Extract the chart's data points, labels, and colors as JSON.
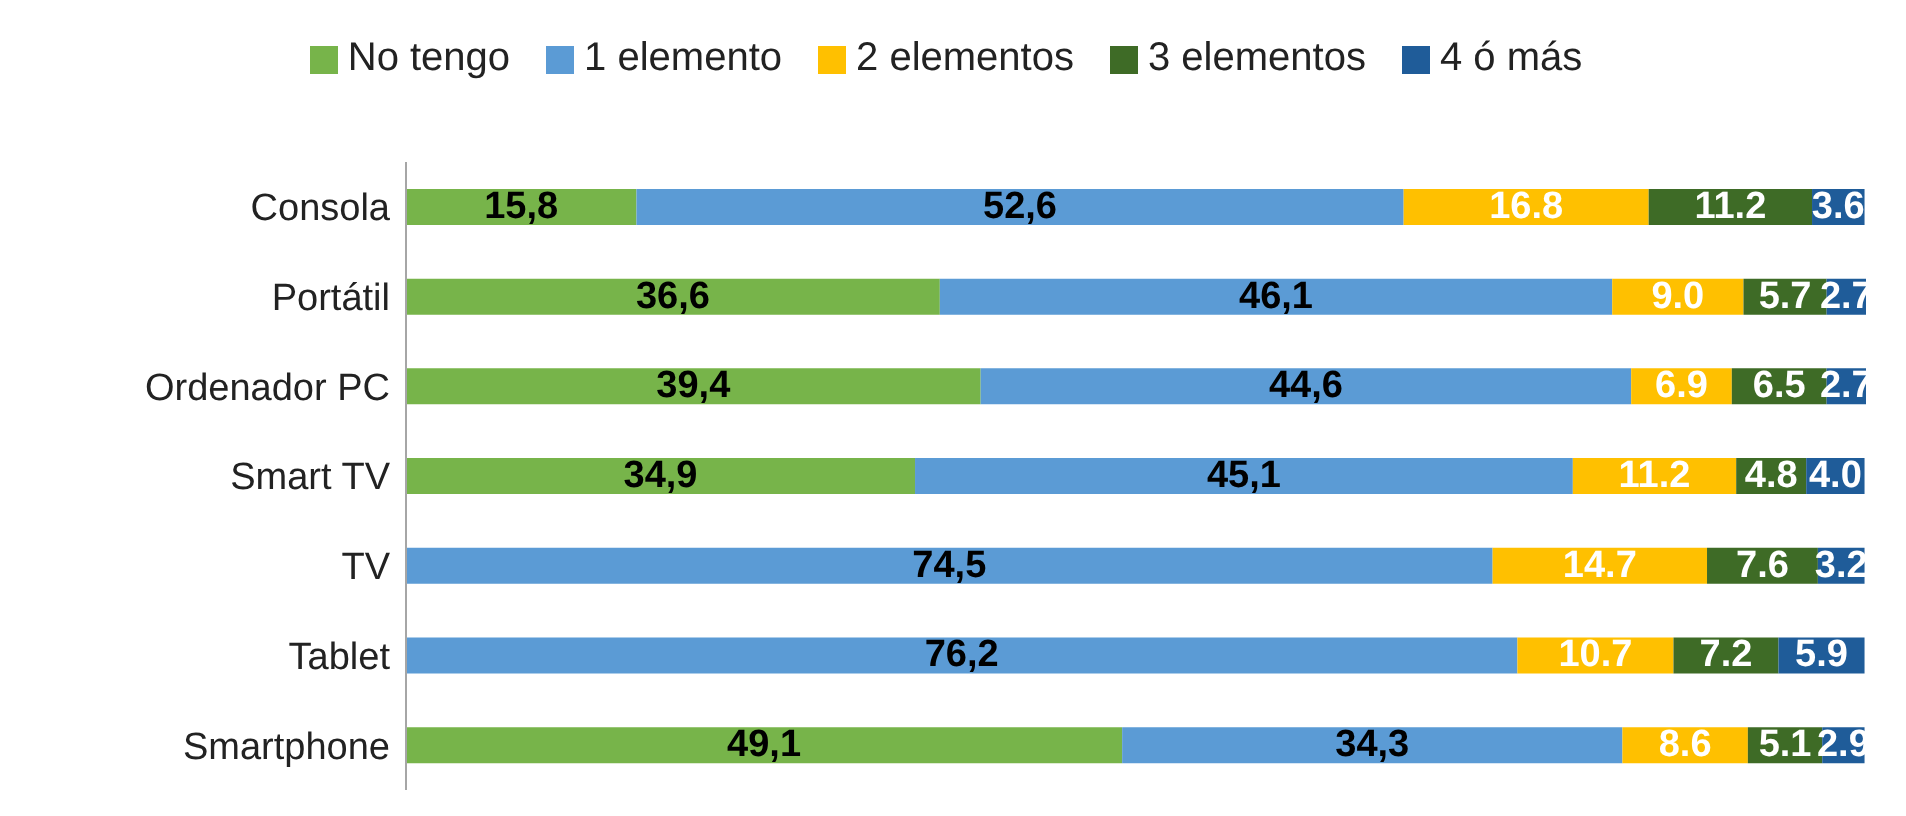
{
  "chart_data": {
    "type": "bar",
    "orientation": "horizontal",
    "stacked": true,
    "legend": "top",
    "categories": [
      "Consola",
      "Portátil",
      "Ordenador PC",
      "Smart TV",
      "TV",
      "Tablet",
      "Smartphone"
    ],
    "series": [
      {
        "name": "No tengo",
        "color": "#77b44a",
        "values": [
          15.8,
          36.6,
          39.4,
          34.9,
          null,
          null,
          49.1
        ],
        "value_labels": [
          "15,8",
          "36,6",
          "39,4",
          "34,9",
          null,
          null,
          "49,1"
        ]
      },
      {
        "name": "1 elemento",
        "color": "#5b9bd5",
        "values": [
          52.6,
          46.1,
          44.6,
          45.1,
          74.5,
          76.2,
          34.3
        ],
        "value_labels": [
          "52,6",
          "46,1",
          "44,6",
          "45,1",
          "74,5",
          "76,2",
          "34,3"
        ]
      },
      {
        "name": "2 elementos",
        "color": "#ffc000",
        "values": [
          16.8,
          9.0,
          6.9,
          11.2,
          14.7,
          10.7,
          8.6
        ],
        "value_labels": [
          "16.8",
          "9.0",
          "6.9",
          "11.2",
          "14.7",
          "10.7",
          "8.6"
        ]
      },
      {
        "name": "3 elementos",
        "color": "#3e6b26",
        "values": [
          11.2,
          5.7,
          6.5,
          4.8,
          7.6,
          7.2,
          5.1
        ],
        "value_labels": [
          "11.2",
          "5.7",
          "6.5",
          "4.8",
          "7.6",
          "7.2",
          "5.1"
        ]
      },
      {
        "name": "4 ó más",
        "color": "#1f5c99",
        "values": [
          3.6,
          2.7,
          2.7,
          4.0,
          3.2,
          5.9,
          2.9
        ],
        "value_labels": [
          "3.6",
          "2.7",
          "2.7",
          "4.0",
          "3.2",
          "5.9",
          "2.9"
        ]
      }
    ]
  }
}
